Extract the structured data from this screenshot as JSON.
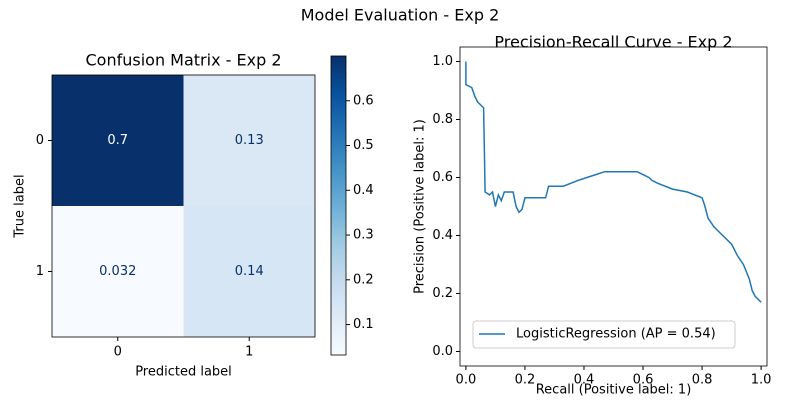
{
  "title": "Model Evaluation - Exp 2",
  "chart_data": [
    {
      "type": "heatmap",
      "title": "Confusion Matrix - Exp 2",
      "x_categories": [
        "0",
        "1"
      ],
      "y_categories": [
        "0",
        "1"
      ],
      "values": [
        [
          0.7,
          0.13
        ],
        [
          0.032,
          0.14
        ]
      ],
      "xlabel": "Predicted label",
      "ylabel": "True label",
      "colormap": [
        "#f7fbff",
        "#deebf7",
        "#c6dbef",
        "#9ecae1",
        "#6baed6",
        "#4292c6",
        "#2171b5",
        "#08519c",
        "#08306b"
      ],
      "colorbar": {
        "lim": [
          0.032,
          0.7
        ],
        "ticks": [
          0.1,
          0.2,
          0.3,
          0.4,
          0.5,
          0.6
        ]
      }
    },
    {
      "type": "line",
      "title": "Precision-Recall Curve - Exp 2",
      "xlabel": "Recall (Positive label: 1)",
      "ylabel": "Precision (Positive label: 1)",
      "x": [
        0,
        0,
        0.02,
        0.03,
        0.04,
        0.05,
        0.06,
        0.065,
        0.08,
        0.09,
        0.1,
        0.11,
        0.12,
        0.13,
        0.16,
        0.17,
        0.18,
        0.19,
        0.2,
        0.27,
        0.28,
        0.33,
        0.38,
        0.41,
        0.44,
        0.47,
        0.55,
        0.58,
        0.6,
        0.62,
        0.63,
        0.65,
        0.7,
        0.75,
        0.8,
        0.81,
        0.82,
        0.84,
        0.86,
        0.9,
        0.92,
        0.94,
        0.96,
        0.97,
        0.98,
        1.0
      ],
      "series": [
        {
          "name": "LogisticRegression (AP = 0.54)",
          "color": "#1f77b4",
          "values": [
            1.0,
            0.92,
            0.91,
            0.88,
            0.86,
            0.85,
            0.84,
            0.55,
            0.54,
            0.55,
            0.5,
            0.54,
            0.52,
            0.55,
            0.55,
            0.5,
            0.48,
            0.49,
            0.53,
            0.53,
            0.57,
            0.57,
            0.59,
            0.6,
            0.61,
            0.62,
            0.62,
            0.62,
            0.61,
            0.6,
            0.59,
            0.58,
            0.56,
            0.55,
            0.53,
            0.5,
            0.46,
            0.43,
            0.41,
            0.37,
            0.33,
            0.3,
            0.25,
            0.21,
            0.19,
            0.17
          ]
        }
      ],
      "xlim": [
        -0.02,
        1.02
      ],
      "ylim": [
        -0.05,
        1.05
      ],
      "xticks": [
        {
          "value": 0,
          "label": "0.0"
        },
        0.2,
        0.4,
        0.6,
        0.8,
        {
          "value": 1,
          "label": "1.0"
        }
      ],
      "yticks": [
        {
          "value": 0,
          "label": "0.0"
        },
        0.2,
        0.4,
        0.6,
        0.8,
        {
          "value": 1,
          "label": "1.0"
        }
      ],
      "grid": false,
      "legend": "lower right"
    }
  ]
}
